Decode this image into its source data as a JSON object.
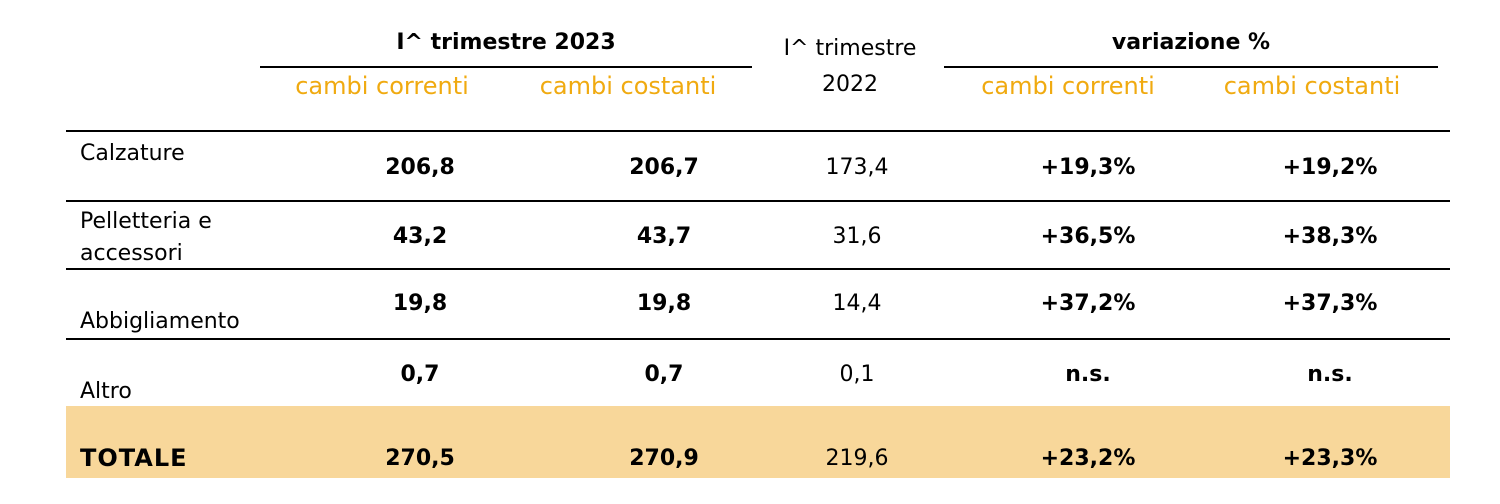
{
  "header": {
    "group_2023": "I^ trimestre 2023",
    "q1_2022_line1": "I^ trimestre",
    "q1_2022_line2": "2022",
    "group_var": "variazione %",
    "sub_correnti_2023": "cambi correnti",
    "sub_costanti_2023": "cambi costanti",
    "sub_correnti_var": "cambi correnti",
    "sub_costanti_var": "cambi costanti"
  },
  "colors": {
    "subheader": "#f0aa10",
    "total_bg": "#f8d79a"
  },
  "rows": [
    {
      "label_line1": "Calzature",
      "label_line2": "",
      "c2023_correnti": "206,8",
      "c2023_costanti": "206,7",
      "q1_2022": "173,4",
      "var_correnti": "+19,3%",
      "var_costanti": "+19,2%"
    },
    {
      "label_line1": "Pelletteria e",
      "label_line2": "accessori",
      "c2023_correnti": "43,2",
      "c2023_costanti": "43,7",
      "q1_2022": "31,6",
      "var_correnti": "+36,5%",
      "var_costanti": "+38,3%"
    },
    {
      "label_line1": "",
      "label_line2": "Abbigliamento",
      "c2023_correnti": "19,8",
      "c2023_costanti": "19,8",
      "q1_2022": "14,4",
      "var_correnti": "+37,2%",
      "var_costanti": "+37,3%"
    },
    {
      "label_line1": "",
      "label_line2": "Altro",
      "c2023_correnti": "0,7",
      "c2023_costanti": "0,7",
      "q1_2022": "0,1",
      "var_correnti": "n.s.",
      "var_costanti": "n.s."
    }
  ],
  "total": {
    "label": "TOTALE",
    "c2023_correnti": "270,5",
    "c2023_costanti": "270,9",
    "q1_2022": "219,6",
    "var_correnti": "+23,2%",
    "var_costanti": "+23,3%"
  }
}
